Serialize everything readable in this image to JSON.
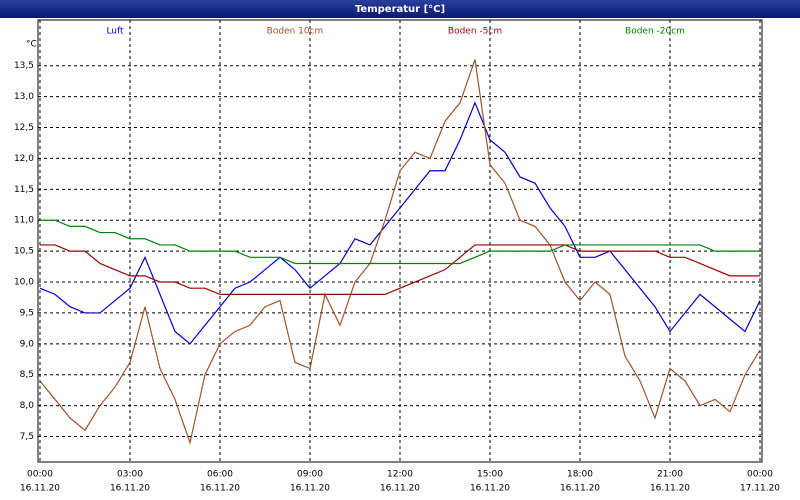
{
  "chart_data": {
    "type": "line",
    "title": "Temperatur [°C]",
    "y_label": "°C",
    "x": [
      0,
      0.5,
      1,
      1.5,
      2,
      2.5,
      3,
      3.5,
      4,
      4.5,
      5,
      5.5,
      6,
      6.5,
      7,
      7.5,
      8,
      8.5,
      9,
      9.5,
      10,
      10.5,
      11,
      11.5,
      12,
      12.5,
      13,
      13.5,
      14,
      14.5,
      15,
      15.5,
      16,
      16.5,
      17,
      17.5,
      18,
      18.5,
      19,
      19.5,
      20,
      20.5,
      21,
      21.5,
      22,
      22.5,
      23,
      23.5,
      24
    ],
    "series": [
      {
        "name": "Luft",
        "color": "#0000cc",
        "values": [
          9.9,
          9.8,
          9.6,
          9.5,
          9.5,
          9.7,
          9.9,
          10.4,
          9.8,
          9.2,
          9.0,
          9.3,
          9.6,
          9.9,
          10.0,
          10.2,
          10.4,
          10.2,
          9.9,
          10.1,
          10.3,
          10.7,
          10.6,
          10.9,
          11.2,
          11.5,
          11.8,
          11.8,
          12.3,
          12.9,
          12.3,
          12.1,
          11.7,
          11.6,
          11.2,
          10.9,
          10.4,
          10.4,
          10.5,
          10.2,
          9.9,
          9.6,
          9.2,
          9.5,
          9.8,
          9.6,
          9.4,
          9.2,
          9.7
        ]
      },
      {
        "name": "Boden 10cm",
        "color": "#a0522d",
        "values": [
          8.4,
          8.1,
          7.8,
          7.6,
          8.0,
          8.3,
          8.7,
          9.6,
          8.6,
          8.1,
          7.4,
          8.5,
          9.0,
          9.2,
          9.3,
          9.6,
          9.7,
          8.7,
          8.6,
          9.8,
          9.3,
          10.0,
          10.3,
          11.0,
          11.8,
          12.1,
          12.0,
          12.6,
          12.9,
          13.6,
          11.9,
          11.6,
          11.0,
          10.9,
          10.6,
          10.0,
          9.7,
          10.0,
          9.8,
          8.8,
          8.4,
          7.8,
          8.6,
          8.4,
          8.0,
          8.1,
          7.9,
          8.5,
          8.9
        ]
      },
      {
        "name": "Boden -5cm",
        "color": "#990000",
        "values": [
          10.6,
          10.6,
          10.5,
          10.5,
          10.3,
          10.2,
          10.1,
          10.1,
          10.0,
          10.0,
          9.9,
          9.9,
          9.8,
          9.8,
          9.8,
          9.8,
          9.8,
          9.8,
          9.8,
          9.8,
          9.8,
          9.8,
          9.8,
          9.8,
          9.9,
          10.0,
          10.1,
          10.2,
          10.4,
          10.6,
          10.6,
          10.6,
          10.6,
          10.6,
          10.6,
          10.6,
          10.5,
          10.5,
          10.5,
          10.5,
          10.5,
          10.5,
          10.4,
          10.4,
          10.3,
          10.2,
          10.1,
          10.1,
          10.1
        ]
      },
      {
        "name": "Boden -20cm",
        "color": "#008000",
        "values": [
          11.0,
          11.0,
          10.9,
          10.9,
          10.8,
          10.8,
          10.7,
          10.7,
          10.6,
          10.6,
          10.5,
          10.5,
          10.5,
          10.5,
          10.4,
          10.4,
          10.4,
          10.3,
          10.3,
          10.3,
          10.3,
          10.3,
          10.3,
          10.3,
          10.3,
          10.3,
          10.3,
          10.3,
          10.3,
          10.4,
          10.5,
          10.5,
          10.5,
          10.5,
          10.5,
          10.6,
          10.6,
          10.6,
          10.6,
          10.6,
          10.6,
          10.6,
          10.6,
          10.6,
          10.6,
          10.5,
          10.5,
          10.5,
          10.5
        ]
      }
    ],
    "xlim": [
      0,
      24
    ],
    "xticks": [
      {
        "value": 0,
        "label": "00:00"
      },
      {
        "value": 3,
        "label": "03:00"
      },
      {
        "value": 6,
        "label": "06:00"
      },
      {
        "value": 9,
        "label": "09:00"
      },
      {
        "value": 12,
        "label": "12:00"
      },
      {
        "value": 15,
        "label": "15:00"
      },
      {
        "value": 18,
        "label": "18:00"
      },
      {
        "value": 21,
        "label": "21:00"
      },
      {
        "value": 24,
        "label": "00:00"
      }
    ],
    "xtick_dates": [
      "16.11.20",
      "16.11.20",
      "16.11.20",
      "16.11.20",
      "16.11.20",
      "16.11.20",
      "16.11.20",
      "16.11.20",
      "17.11.20"
    ],
    "ylim": [
      7.12,
      14.24
    ],
    "yticks": [
      {
        "value": 7.5,
        "label": "7,5"
      },
      {
        "value": 8,
        "label": "8,0"
      },
      {
        "value": 8.5,
        "label": "8,5"
      },
      {
        "value": 9,
        "label": "9,0"
      },
      {
        "value": 9.5,
        "label": "9,5"
      },
      {
        "value": 10,
        "label": "10,0"
      },
      {
        "value": 10.5,
        "label": "10,5"
      },
      {
        "value": 11,
        "label": "11,0"
      },
      {
        "value": 11.5,
        "label": "11,5"
      },
      {
        "value": 12,
        "label": "12,0"
      },
      {
        "value": 12.5,
        "label": "12,5"
      },
      {
        "value": 13,
        "label": "13,0"
      },
      {
        "value": 13.5,
        "label": "13,5"
      }
    ],
    "grid": true
  }
}
